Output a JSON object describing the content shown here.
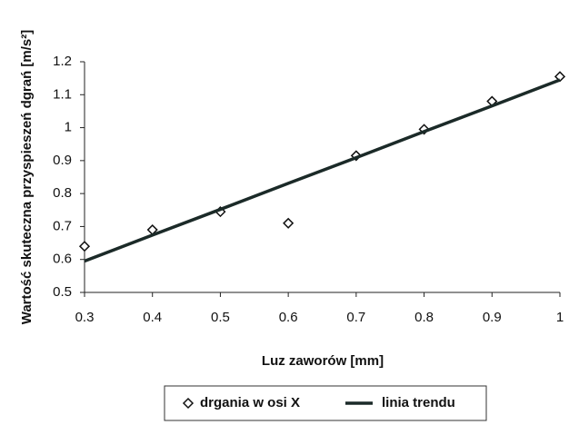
{
  "chart_data": {
    "type": "scatter",
    "x_label": "Luz zaworów [mm]",
    "y_label": "Wartość skuteczna przyspieszeń dgrań [m/s²]",
    "x": [
      0.3,
      0.4,
      0.5,
      0.6,
      0.7,
      0.8,
      0.9,
      1
    ],
    "series": [
      {
        "name": "drgania w osi X",
        "color": "#111111",
        "marker": "diamond",
        "values": [
          0.64,
          0.69,
          0.745,
          0.71,
          0.915,
          0.995,
          1.08,
          1.155
        ]
      },
      {
        "name": "linia trendu",
        "color": "#1b2a28",
        "marker": "line",
        "values": [
          0.595,
          0.674,
          0.752,
          0.831,
          0.909,
          0.988,
          1.066,
          1.145
        ]
      }
    ],
    "xlim": [
      0.3,
      1
    ],
    "xticks": [
      0.3,
      0.4,
      0.5,
      0.6,
      0.7,
      0.8,
      0.9,
      1
    ],
    "ylim": [
      0.5,
      1.2
    ],
    "yticks": [
      0.5,
      0.6,
      0.7,
      0.8,
      0.9,
      1,
      1.1,
      1.2
    ],
    "grid": false
  }
}
